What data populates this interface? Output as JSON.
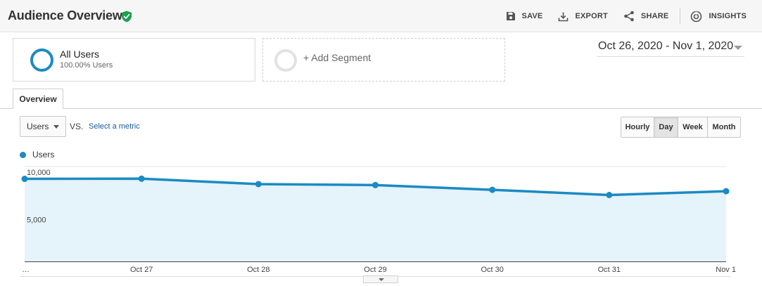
{
  "header": {
    "title": "Audience Overview",
    "actions": {
      "save": "SAVE",
      "export": "EXPORT",
      "share": "SHARE",
      "insights": "INSIGHTS"
    }
  },
  "segments": {
    "all_users": {
      "name": "All Users",
      "percentage": "100.00% Users"
    },
    "add_segment": "+ Add Segment"
  },
  "date_range": "Oct 26, 2020 - Nov 1, 2020",
  "tabs": {
    "overview": "Overview"
  },
  "controls": {
    "metric": "Users",
    "vs": "VS.",
    "select_metric": "Select a metric",
    "granularity": [
      "Hourly",
      "Day",
      "Week",
      "Month"
    ],
    "granularity_selected": "Day"
  },
  "colors": {
    "accent": "#1a8bc3",
    "area_fill": "#e5f3fa",
    "verified": "#1e9e50"
  },
  "chart_data": {
    "type": "area",
    "series": [
      {
        "name": "Users",
        "values": [
          8700,
          8720,
          8150,
          8050,
          7550,
          7000,
          7400
        ]
      }
    ],
    "x": [
      "…",
      "Oct 27",
      "Oct 28",
      "Oct 29",
      "Oct 30",
      "Oct 31",
      "Nov 1"
    ],
    "y_ticks": [
      "10,000",
      "5,000"
    ],
    "y_tick_values": [
      10000,
      5000
    ],
    "ylim": [
      0,
      10000
    ],
    "grid": true,
    "legend": "top-left"
  }
}
